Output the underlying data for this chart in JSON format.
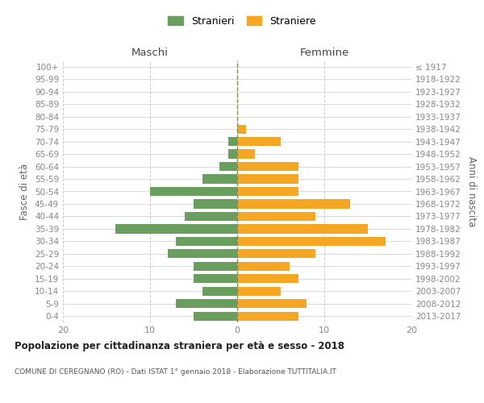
{
  "age_groups": [
    "0-4",
    "5-9",
    "10-14",
    "15-19",
    "20-24",
    "25-29",
    "30-34",
    "35-39",
    "40-44",
    "45-49",
    "50-54",
    "55-59",
    "60-64",
    "65-69",
    "70-74",
    "75-79",
    "80-84",
    "85-89",
    "90-94",
    "95-99",
    "100+"
  ],
  "birth_years": [
    "2013-2017",
    "2008-2012",
    "2003-2007",
    "1998-2002",
    "1993-1997",
    "1988-1992",
    "1983-1987",
    "1978-1982",
    "1973-1977",
    "1968-1972",
    "1963-1967",
    "1958-1962",
    "1953-1957",
    "1948-1952",
    "1943-1947",
    "1938-1942",
    "1933-1937",
    "1928-1932",
    "1923-1927",
    "1918-1922",
    "≤ 1917"
  ],
  "maschi": [
    5,
    7,
    4,
    5,
    5,
    8,
    7,
    14,
    6,
    5,
    10,
    4,
    2,
    1,
    1,
    0,
    0,
    0,
    0,
    0,
    0
  ],
  "femmine": [
    7,
    8,
    5,
    7,
    6,
    9,
    17,
    15,
    9,
    13,
    7,
    7,
    7,
    2,
    5,
    1,
    0,
    0,
    0,
    0,
    0
  ],
  "maschi_color": "#6a9e5e",
  "femmine_color": "#f5a623",
  "title": "Popolazione per cittadinanza straniera per età e sesso - 2018",
  "subtitle": "COMUNE DI CEREGNANO (RO) - Dati ISTAT 1° gennaio 2018 - Elaborazione TUTTITALIA.IT",
  "ylabel_left": "Fasce di età",
  "ylabel_right": "Anni di nascita",
  "xlabel_maschi": "Maschi",
  "xlabel_femmine": "Femmine",
  "legend_maschi": "Stranieri",
  "legend_femmine": "Straniere",
  "xlim": 20,
  "background_color": "#ffffff",
  "grid_color": "#cccccc",
  "bar_height": 0.72
}
